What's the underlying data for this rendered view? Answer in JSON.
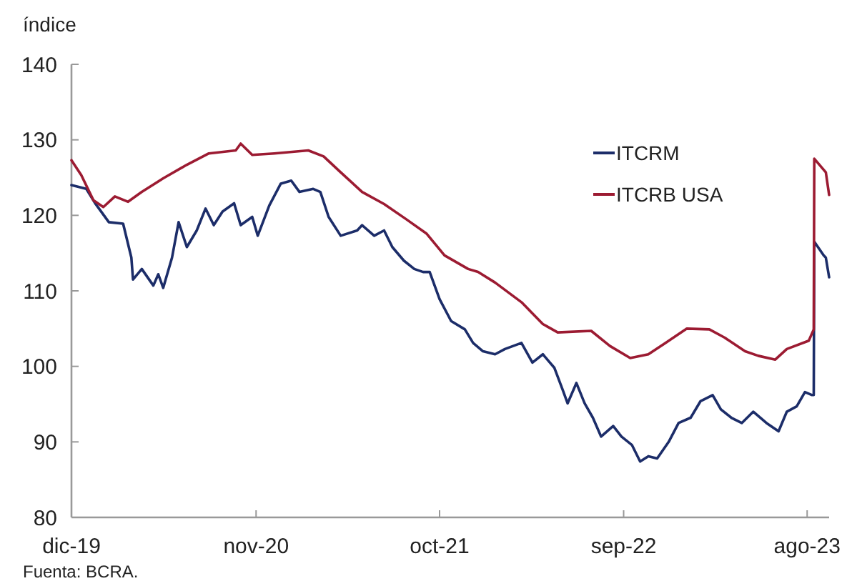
{
  "chart_data": {
    "type": "line",
    "ylabel": "índice",
    "annotations": [
      "Fuenta: BCRA."
    ],
    "xlim": [
      "2019-12-01",
      "2023-09-10"
    ],
    "ylim": [
      80,
      140
    ],
    "yticks": [
      80,
      90,
      100,
      110,
      120,
      130,
      140
    ],
    "xticks": [
      {
        "value": "2019-12-01",
        "label": "dic-19"
      },
      {
        "value": "2020-11-01",
        "label": "nov-20"
      },
      {
        "value": "2021-10-01",
        "label": "oct-21"
      },
      {
        "value": "2022-09-01",
        "label": "sep-22"
      },
      {
        "value": "2023-08-01",
        "label": "ago-23"
      }
    ],
    "grid": false,
    "legend": "top right",
    "marker": "none",
    "line_style": "solid",
    "series": [
      {
        "name": "ITCRM",
        "color": "#1c2d69",
        "x": [
          "2019-12-01",
          "2019-12-28",
          "2020-01-13",
          "2020-02-07",
          "2020-03-04",
          "2020-03-19",
          "2020-03-22",
          "2020-04-07",
          "2020-04-28",
          "2020-05-07",
          "2020-05-16",
          "2020-06-01",
          "2020-06-13",
          "2020-06-28",
          "2020-07-16",
          "2020-08-01",
          "2020-08-16",
          "2020-09-01",
          "2020-09-22",
          "2020-10-04",
          "2020-10-25",
          "2020-11-04",
          "2020-11-25",
          "2020-12-16",
          "2021-01-04",
          "2021-01-19",
          "2021-02-13",
          "2021-02-26",
          "2021-03-13",
          "2021-04-04",
          "2021-05-04",
          "2021-05-13",
          "2021-06-04",
          "2021-06-22",
          "2021-07-07",
          "2021-07-28",
          "2021-08-16",
          "2021-09-01",
          "2021-09-13",
          "2021-10-01",
          "2021-10-22",
          "2021-11-16",
          "2021-12-01",
          "2021-12-19",
          "2022-01-10",
          "2022-01-28",
          "2022-02-27",
          "2022-03-19",
          "2022-04-07",
          "2022-04-28",
          "2022-05-13",
          "2022-05-22",
          "2022-06-07",
          "2022-06-22",
          "2022-07-07",
          "2022-07-22",
          "2022-08-13",
          "2022-08-28",
          "2022-09-16",
          "2022-10-01",
          "2022-10-16",
          "2022-11-01",
          "2022-11-22",
          "2022-12-10",
          "2023-01-01",
          "2023-01-19",
          "2023-02-10",
          "2023-02-25",
          "2023-03-16",
          "2023-04-04",
          "2023-04-25",
          "2023-05-19",
          "2023-06-10",
          "2023-06-25",
          "2023-07-13",
          "2023-07-28",
          "2023-08-10",
          "2023-08-13",
          "2023-08-14",
          "2023-08-31",
          "2023-09-04",
          "2023-09-10"
        ],
        "values": [
          124.0,
          123.5,
          121.6,
          119.1,
          118.9,
          114.4,
          111.5,
          112.9,
          110.7,
          112.2,
          110.4,
          114.4,
          119.1,
          115.8,
          118.0,
          120.9,
          118.7,
          120.5,
          121.6,
          118.7,
          119.8,
          117.3,
          121.3,
          124.2,
          124.6,
          123.1,
          123.5,
          123.1,
          119.8,
          117.3,
          118.0,
          118.7,
          117.3,
          118.0,
          115.8,
          114.0,
          112.9,
          112.5,
          112.5,
          108.9,
          106.0,
          104.9,
          103.1,
          102.0,
          101.6,
          102.3,
          103.1,
          100.5,
          101.6,
          99.8,
          96.9,
          95.1,
          97.8,
          95.1,
          93.2,
          90.7,
          92.1,
          90.7,
          89.6,
          87.4,
          88.1,
          87.8,
          90.0,
          92.5,
          93.2,
          95.4,
          96.2,
          94.3,
          93.2,
          92.5,
          94.0,
          92.5,
          91.4,
          94.0,
          94.7,
          96.6,
          96.2,
          96.2,
          116.5,
          114.7,
          114.4,
          111.8
        ]
      },
      {
        "name": "ITCRB USA",
        "color": "#9c1b32",
        "x": [
          "2019-12-01",
          "2019-12-19",
          "2020-01-10",
          "2020-01-28",
          "2020-02-18",
          "2020-03-13",
          "2020-04-07",
          "2020-05-16",
          "2020-06-28",
          "2020-08-07",
          "2020-09-25",
          "2020-10-04",
          "2020-10-25",
          "2020-12-04",
          "2021-02-04",
          "2021-03-04",
          "2021-04-04",
          "2021-05-13",
          "2021-06-22",
          "2021-08-01",
          "2021-09-07",
          "2021-10-10",
          "2021-11-22",
          "2021-12-10",
          "2022-01-10",
          "2022-02-27",
          "2022-04-07",
          "2022-05-04",
          "2022-07-04",
          "2022-08-07",
          "2022-09-13",
          "2022-10-16",
          "2022-11-16",
          "2022-12-25",
          "2023-02-04",
          "2023-03-04",
          "2023-04-10",
          "2023-05-04",
          "2023-06-04",
          "2023-06-25",
          "2023-08-04",
          "2023-08-13",
          "2023-08-14",
          "2023-09-04",
          "2023-09-10"
        ],
        "values": [
          127.3,
          125.3,
          122.0,
          121.1,
          122.5,
          121.8,
          123.1,
          124.9,
          126.7,
          128.2,
          128.6,
          129.5,
          128.0,
          128.2,
          128.6,
          127.8,
          125.7,
          123.1,
          121.5,
          119.5,
          117.6,
          114.7,
          112.9,
          112.5,
          111.1,
          108.5,
          105.6,
          104.5,
          104.7,
          102.7,
          101.1,
          101.6,
          103.1,
          105.0,
          104.9,
          103.8,
          102.0,
          101.4,
          100.9,
          102.3,
          103.4,
          104.9,
          127.5,
          125.7,
          122.7
        ]
      }
    ]
  }
}
